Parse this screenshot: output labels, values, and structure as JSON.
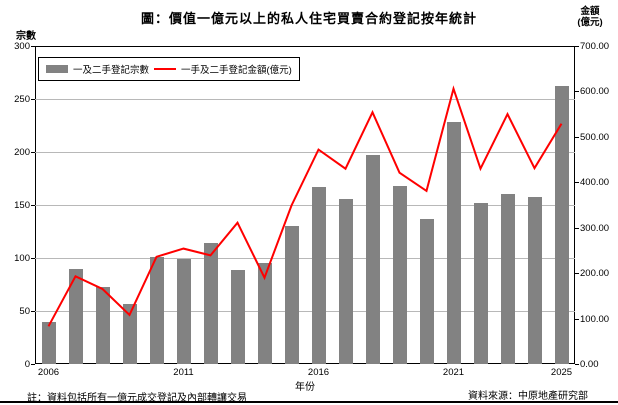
{
  "title": "圖：價值一億元以上的私人住宅買賣合約登記按年統計",
  "legend": {
    "bar_label": "一及二手登記宗數",
    "line_label": "一手及二手登記金額(億元)"
  },
  "left_axis": {
    "label": "宗數",
    "ticks": [
      "300",
      "250",
      "200",
      "150",
      "100",
      "50",
      "0"
    ],
    "max": 300,
    "step": 50
  },
  "right_axis": {
    "label_line1": "金額",
    "label_line2": "(億元)",
    "ticks": [
      "700.00",
      "600.00",
      "500.00",
      "400.00",
      "300.00",
      "200.00",
      "100.00",
      "0.00"
    ],
    "max": 700,
    "step": 100
  },
  "x_axis": {
    "label": "年份",
    "shown_years": [
      "2006",
      "2011",
      "2016",
      "2021",
      "2025"
    ]
  },
  "note": "註：資料包括所有一億元成交登記及內部轉讓交易",
  "source": "資料來源：中原地產研究部",
  "colors": {
    "bar": "#828282",
    "line": "#ff0000",
    "grid": "#b8b8b8"
  },
  "chart_data": {
    "type": "bar",
    "subtype": "bar+line dual axis",
    "title": "圖：價值一億元以上的私人住宅買賣合約登記按年統計",
    "categories": [
      2006,
      2007,
      2008,
      2009,
      2010,
      2011,
      2012,
      2013,
      2014,
      2015,
      2016,
      2017,
      2018,
      2019,
      2020,
      2021,
      2022,
      2023,
      2024,
      2025
    ],
    "series": [
      {
        "name": "一及二手登記宗數",
        "type": "bar",
        "axis": "left",
        "values": [
          40,
          90,
          73,
          57,
          101,
          99,
          114,
          89,
          95,
          130,
          167,
          156,
          197,
          168,
          137,
          228,
          152,
          160,
          158,
          262
        ]
      },
      {
        "name": "一手及二手登記金額(億元)",
        "type": "line",
        "axis": "right",
        "values": [
          83,
          193,
          165,
          108,
          236,
          254,
          239,
          311,
          190,
          349,
          472,
          430,
          554,
          421,
          381,
          606,
          430,
          550,
          431,
          529
        ]
      }
    ],
    "xlabel": "年份",
    "ylabel_left": "宗數",
    "ylabel_right": "金額(億元)",
    "left_ylim": [
      0,
      300
    ],
    "right_ylim": [
      0,
      700
    ],
    "grid": "horizontal",
    "legend_position": "top-left-inside"
  }
}
